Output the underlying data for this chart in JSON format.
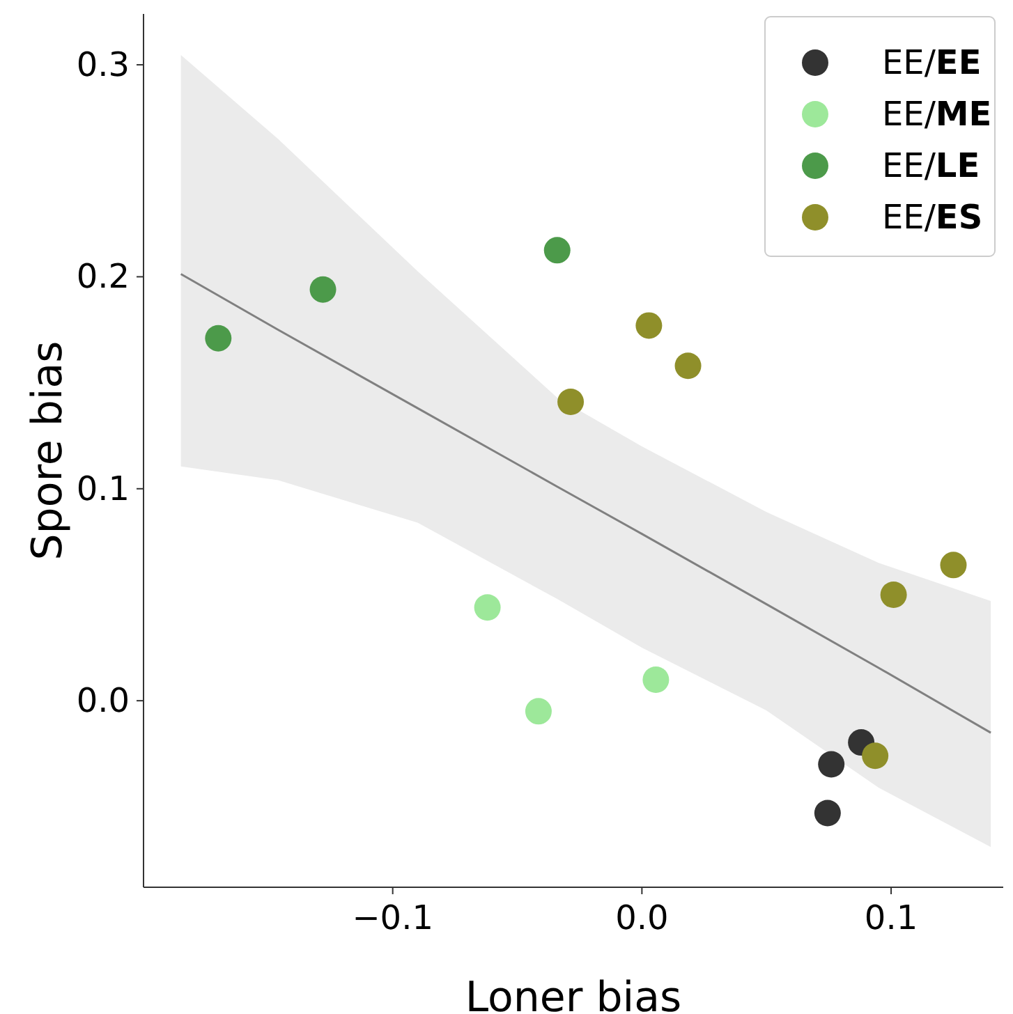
{
  "chart_data": {
    "type": "scatter",
    "xlabel": "Loner bias",
    "ylabel": "Spore bias",
    "xlim": [
      -0.2,
      0.145
    ],
    "ylim": [
      -0.088,
      0.324
    ],
    "xticks": [
      {
        "value": -0.1,
        "label": "−0.1"
      },
      {
        "value": 0,
        "label": "0.0"
      },
      {
        "value": 0.1,
        "label": "0.1"
      }
    ],
    "yticks": [
      {
        "value": 0,
        "label": "0.0"
      },
      {
        "value": 0.1,
        "label": "0.1"
      },
      {
        "value": 0.2,
        "label": "0.2"
      },
      {
        "value": 0.3,
        "label": "0.3"
      }
    ],
    "grid": false,
    "legend": "top right",
    "marker": "circle",
    "series": [
      {
        "type": "line",
        "color": "#808080",
        "line_style": "solid",
        "marker": "none",
        "x": [
          -0.185,
          -0.146,
          -0.09,
          -0.034,
          0,
          0.05,
          0.095,
          0.14
        ],
        "values": [
          0.2013,
          0.175,
          0.138,
          0.101,
          0.0787,
          0.0455,
          0.0155,
          -0.0151
        ],
        "lower": [
          0.1105,
          0.104,
          0.084,
          0.048,
          0.025,
          -0.0046,
          -0.041,
          -0.069
        ],
        "upper": [
          0.3046,
          0.265,
          0.2026,
          0.143,
          0.12,
          0.089,
          0.065,
          0.047
        ]
      },
      {
        "name": "EE/EE",
        "color": "#333333",
        "x": [
          0.088,
          0.076,
          0.0745
        ],
        "values": [
          -0.0197,
          -0.03,
          -0.053
        ]
      },
      {
        "name": "EE/ME",
        "color": "#9de89a",
        "x": [
          -0.062,
          -0.0415,
          0.0056
        ],
        "values": [
          0.044,
          -0.005,
          0.0099
        ]
      },
      {
        "name": "EE/LE",
        "color": "#4c9a4a",
        "x": [
          -0.17,
          -0.128,
          -0.034
        ],
        "values": [
          0.171,
          0.194,
          0.2125
        ]
      },
      {
        "name": "EE/ES",
        "color": "#8f8f2a",
        "x": [
          0.0028,
          0.0185,
          -0.0286,
          0.125,
          0.101,
          0.0936
        ],
        "values": [
          0.177,
          0.158,
          0.141,
          0.064,
          0.05,
          -0.026
        ]
      }
    ]
  }
}
